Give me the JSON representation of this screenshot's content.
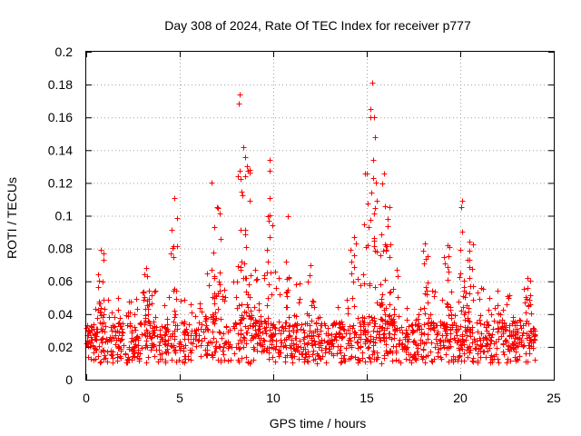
{
  "chart_data": {
    "type": "scatter",
    "title": "Day 308 of 2024, Rate Of TEC Index for receiver p777",
    "xlabel": "GPS time / hours",
    "ylabel": "ROTI / TECUs",
    "xlim": [
      0,
      25
    ],
    "ylim": [
      0,
      0.2
    ],
    "xticks": [
      "0",
      "5",
      "10",
      "15",
      "20",
      "25"
    ],
    "yticks": [
      "0",
      "0.02",
      "0.04",
      "0.06",
      "0.08",
      "0.1",
      "0.12",
      "0.14",
      "0.16",
      "0.18",
      "0.2"
    ],
    "grid": true,
    "marker": "+",
    "series_color": "#ff0000",
    "baseline_range": [
      0.01,
      0.035
    ],
    "peaks": [
      {
        "x": 0.8,
        "y": 0.079
      },
      {
        "x": 3.2,
        "y": 0.068
      },
      {
        "x": 4.7,
        "y": 0.111
      },
      {
        "x": 6.7,
        "y": 0.12
      },
      {
        "x": 7.0,
        "y": 0.105
      },
      {
        "x": 8.2,
        "y": 0.174
      },
      {
        "x": 8.4,
        "y": 0.142
      },
      {
        "x": 8.6,
        "y": 0.13
      },
      {
        "x": 9.8,
        "y": 0.134
      },
      {
        "x": 10.8,
        "y": 0.1
      },
      {
        "x": 12.0,
        "y": 0.07
      },
      {
        "x": 14.3,
        "y": 0.087
      },
      {
        "x": 15.0,
        "y": 0.126
      },
      {
        "x": 15.3,
        "y": 0.181
      },
      {
        "x": 15.4,
        "y": 0.16
      },
      {
        "x": 15.9,
        "y": 0.126
      },
      {
        "x": 16.2,
        "y": 0.105
      },
      {
        "x": 18.1,
        "y": 0.083
      },
      {
        "x": 19.3,
        "y": 0.082
      },
      {
        "x": 20.1,
        "y": 0.109
      },
      {
        "x": 20.5,
        "y": 0.084
      },
      {
        "x": 23.6,
        "y": 0.062
      }
    ]
  }
}
